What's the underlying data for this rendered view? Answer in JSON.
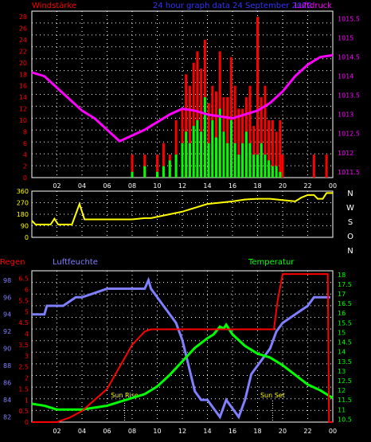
{
  "title": "24 hour graph data 24 September 2022",
  "colors": {
    "wind_avg": "#00ff00",
    "wind_gust": "#ff0000",
    "pressure": "#ff00ff",
    "wind_dir": "#ffff00",
    "rain": "#ff0000",
    "humidity": "#8080ff",
    "temperature": "#00ff00",
    "grid": "#ffffff",
    "axis": "#ffffff"
  },
  "x_ticks": [
    "02",
    "04",
    "06",
    "08",
    "10",
    "12",
    "14",
    "16",
    "18",
    "20",
    "22",
    "00"
  ],
  "chart_data": [
    {
      "type": "bar",
      "x_range_hours": [
        0,
        24
      ],
      "left_label": "Windstärke",
      "right_label": "Luftdruck",
      "left_ticks": [
        "0",
        "2",
        "4",
        "6",
        "8",
        "10",
        "12",
        "14",
        "16",
        "18",
        "20",
        "22",
        "24",
        "26",
        "28"
      ],
      "right_ticks": [
        "1011.5",
        "1012",
        "1012.5",
        "1013",
        "1013.5",
        "1014",
        "1014.5",
        "1015",
        "1015.5"
      ],
      "left_range": [
        0,
        29
      ],
      "right_range": [
        1011.35,
        1015.7
      ],
      "series": [
        {
          "name": "Windstärke",
          "kind": "gust",
          "x": [
            8.0,
            9.0,
            10.0,
            10.5,
            11.0,
            11.5,
            12.0,
            12.3,
            12.6,
            12.9,
            13.2,
            13.5,
            13.8,
            14.1,
            14.4,
            14.7,
            15.0,
            15.3,
            15.6,
            15.9,
            16.2,
            16.5,
            16.8,
            17.1,
            17.4,
            17.7,
            18.0,
            18.3,
            18.6,
            18.9,
            19.2,
            19.5,
            19.8,
            20.0,
            22.5,
            23.5
          ],
          "values": [
            4,
            4,
            4,
            6,
            4,
            10,
            12,
            18,
            16,
            20,
            22,
            19,
            24,
            13,
            16,
            15,
            22,
            14,
            14,
            21,
            16,
            12,
            12,
            14,
            16,
            9,
            28,
            14,
            16,
            10,
            10,
            8,
            10,
            4,
            4,
            4
          ]
        },
        {
          "name": "Windstärke",
          "kind": "average",
          "x": [
            8.0,
            9.0,
            10.0,
            10.5,
            11.0,
            11.5,
            12.0,
            12.3,
            12.6,
            12.9,
            13.2,
            13.5,
            13.8,
            14.1,
            14.4,
            14.7,
            15.0,
            15.3,
            15.6,
            15.9,
            16.2,
            16.5,
            16.8,
            17.1,
            17.4,
            17.7,
            18.0,
            18.3,
            18.6,
            18.9,
            19.2,
            19.5,
            19.8
          ],
          "values": [
            1,
            2,
            1,
            2,
            3,
            4,
            6,
            8,
            6,
            9,
            10,
            8,
            14,
            6,
            10,
            7,
            12,
            8,
            6,
            10,
            6,
            4,
            6,
            8,
            6,
            4,
            4,
            6,
            4,
            3,
            2,
            2,
            1
          ]
        },
        {
          "name": "Luftdruck",
          "x": [
            0,
            1,
            2,
            3,
            4,
            5,
            6,
            7,
            8,
            9,
            10,
            11,
            12,
            13,
            14,
            15,
            16,
            17,
            18,
            19,
            20,
            21,
            22,
            23,
            24
          ],
          "values": [
            1014.1,
            1014.0,
            1013.7,
            1013.4,
            1013.1,
            1012.9,
            1012.6,
            1012.3,
            1012.45,
            1012.6,
            1012.8,
            1013.0,
            1013.15,
            1013.1,
            1013.0,
            1012.95,
            1012.9,
            1013.0,
            1013.1,
            1013.3,
            1013.6,
            1014.0,
            1014.3,
            1014.5,
            1014.55
          ]
        }
      ]
    },
    {
      "type": "line",
      "x_range_hours": [
        0,
        24
      ],
      "left_ticks": [
        "0",
        "90",
        "180",
        "270",
        "360"
      ],
      "right_labels": [
        "N",
        "W",
        "S",
        "O",
        "N"
      ],
      "y_range": [
        0,
        360
      ],
      "series": [
        {
          "name": "Wind direction",
          "x": [
            0,
            0.3,
            1.5,
            1.8,
            2.1,
            3.2,
            3.5,
            3.8,
            4.2,
            4.5,
            6,
            8,
            9.0,
            9.5,
            11,
            12,
            13,
            14,
            15,
            16,
            17,
            18,
            19,
            20,
            21,
            21.5,
            22,
            22.5,
            22.8,
            23.2,
            23.5,
            24
          ],
          "values": [
            130,
            100,
            100,
            145,
            100,
            100,
            180,
            260,
            140,
            140,
            140,
            140,
            150,
            150,
            180,
            200,
            230,
            260,
            270,
            280,
            295,
            300,
            300,
            290,
            280,
            310,
            330,
            330,
            300,
            300,
            345,
            345
          ]
        }
      ]
    },
    {
      "type": "line",
      "x_range_hours": [
        0,
        24
      ],
      "rain_label": "Regen",
      "humidity_label": "Luftfeuchte",
      "temperature_label": "Temperatur",
      "rain_ticks": [
        "0",
        "0.5",
        "1",
        "1.5",
        "2",
        "2.5",
        "3",
        "3.5",
        "4",
        "4.5",
        "5",
        "5.5",
        "6",
        "6.5"
      ],
      "humidity_ticks": [
        "82",
        "84",
        "86",
        "88",
        "90",
        "92",
        "94",
        "96",
        "98"
      ],
      "temperature_ticks": [
        "10.5",
        "11",
        "11.5",
        "12",
        "12.5",
        "13",
        "13.5",
        "14",
        "14.5",
        "15",
        "15.5",
        "16",
        "16.5",
        "17",
        "17.5",
        "18"
      ],
      "rain_range": [
        0,
        6.85
      ],
      "humidity_range": [
        81.4,
        99.1
      ],
      "temperature_range": [
        10.35,
        18.2
      ],
      "annotations": [
        {
          "label": "Sun Rise",
          "x_hour": 7.4
        },
        {
          "label": "Sun Set",
          "x_hour": 19.2
        }
      ],
      "series": [
        {
          "name": "Regen",
          "x": [
            0,
            2,
            3,
            4,
            5,
            6,
            7,
            8,
            9,
            9.5,
            10,
            12,
            14,
            16,
            18,
            19.3,
            19.6,
            20,
            22,
            23.6,
            23.7,
            24
          ],
          "values": [
            0,
            0,
            0.2,
            0.5,
            1.0,
            1.5,
            2.5,
            3.5,
            4.1,
            4.2,
            4.2,
            4.2,
            4.2,
            4.2,
            4.2,
            4.2,
            5.5,
            6.7,
            6.7,
            6.7,
            0,
            0
          ]
        },
        {
          "name": "Luftfeuchte",
          "x": [
            0,
            1,
            1.2,
            2,
            2.5,
            3,
            3.5,
            4,
            5,
            6,
            7,
            8,
            9,
            9.3,
            9.5,
            10,
            10.5,
            11,
            11.5,
            12,
            12.5,
            13,
            13.5,
            14,
            14.5,
            15,
            15.5,
            16,
            16.5,
            17,
            17.5,
            18,
            18.5,
            19,
            19.5,
            20,
            21,
            22,
            22.5,
            23,
            23.8
          ],
          "values": [
            94,
            94,
            95,
            95,
            95,
            95.5,
            96,
            96,
            96.5,
            97,
            97,
            97,
            97,
            98,
            97,
            96,
            95,
            94,
            93,
            91,
            88,
            85,
            84,
            84,
            83,
            82,
            84,
            83,
            82,
            84,
            87,
            88,
            89,
            90,
            92,
            93,
            94,
            95,
            96,
            96,
            96
          ]
        },
        {
          "name": "Temperatur",
          "x": [
            0,
            1,
            2,
            3,
            4,
            5,
            6,
            7,
            8,
            9,
            10,
            11,
            12,
            13,
            14,
            14.5,
            15,
            15.3,
            15.5,
            16,
            17,
            18,
            19,
            20,
            21,
            22,
            23,
            24
          ],
          "values": [
            11.3,
            11.2,
            11.0,
            11.0,
            11.0,
            11.1,
            11.2,
            11.4,
            11.6,
            11.8,
            12.2,
            12.8,
            13.5,
            14.2,
            14.7,
            14.9,
            15.3,
            15.2,
            15.4,
            14.9,
            14.3,
            13.9,
            13.7,
            13.3,
            12.8,
            12.3,
            12.0,
            11.6
          ]
        }
      ]
    }
  ]
}
